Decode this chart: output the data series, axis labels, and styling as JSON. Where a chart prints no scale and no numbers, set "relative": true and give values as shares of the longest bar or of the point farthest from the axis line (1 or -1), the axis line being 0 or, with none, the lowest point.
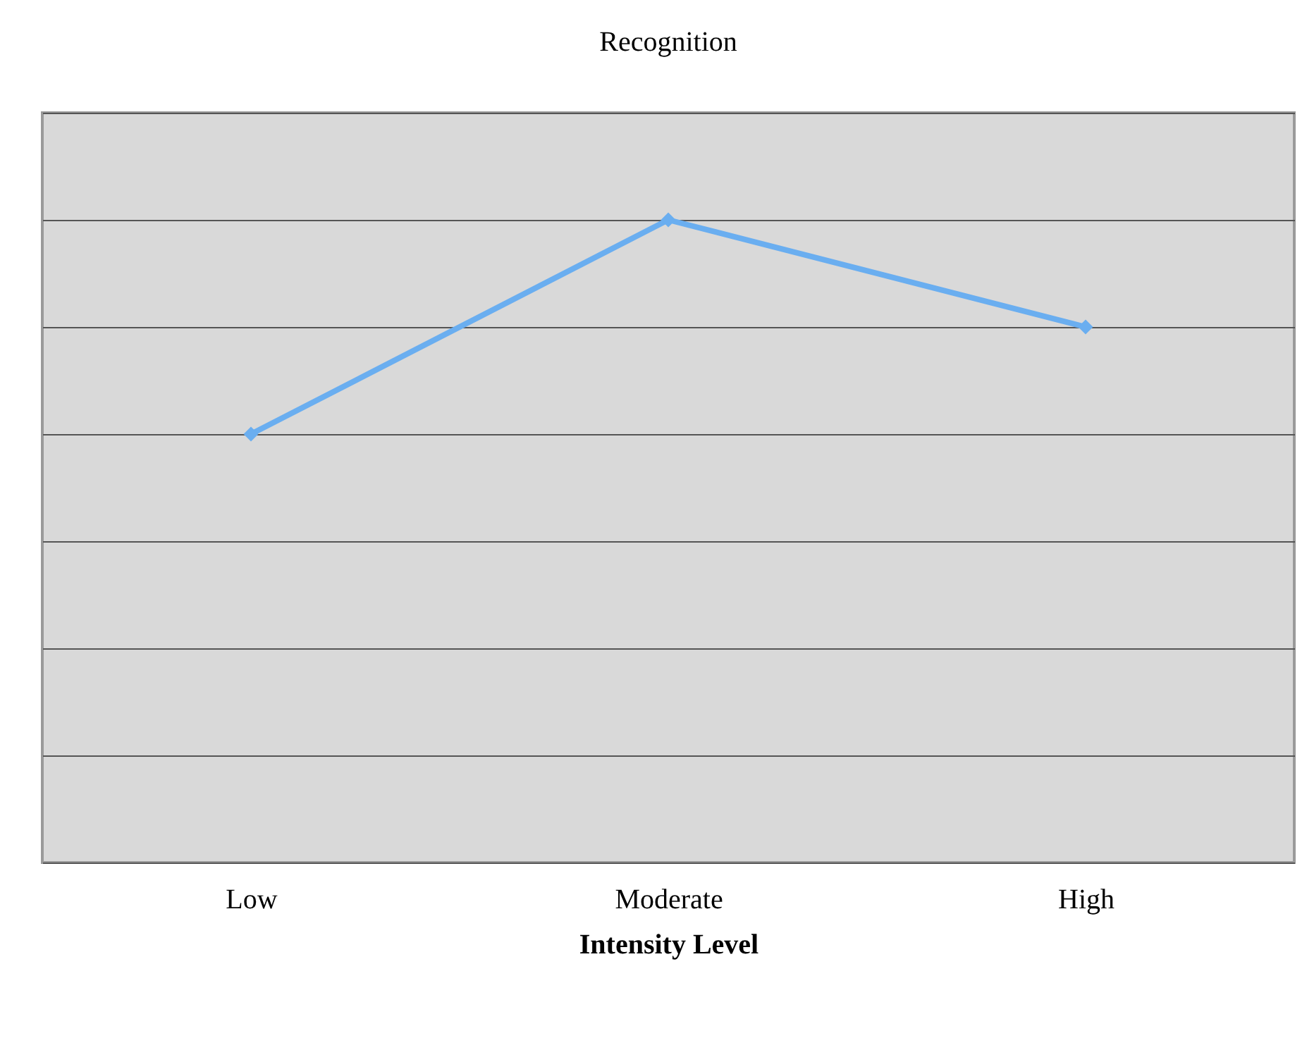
{
  "chart_data": {
    "type": "line",
    "title": "Recognition",
    "xlabel": "Intensity Level",
    "categories": [
      "Low",
      "Moderate",
      "High"
    ],
    "relative": true,
    "grid": "y",
    "marker": "diamond",
    "line_style": "solid",
    "series": [
      {
        "color": "#6aaef0",
        "values": [
          0.6,
          1,
          0.8
        ]
      }
    ]
  }
}
